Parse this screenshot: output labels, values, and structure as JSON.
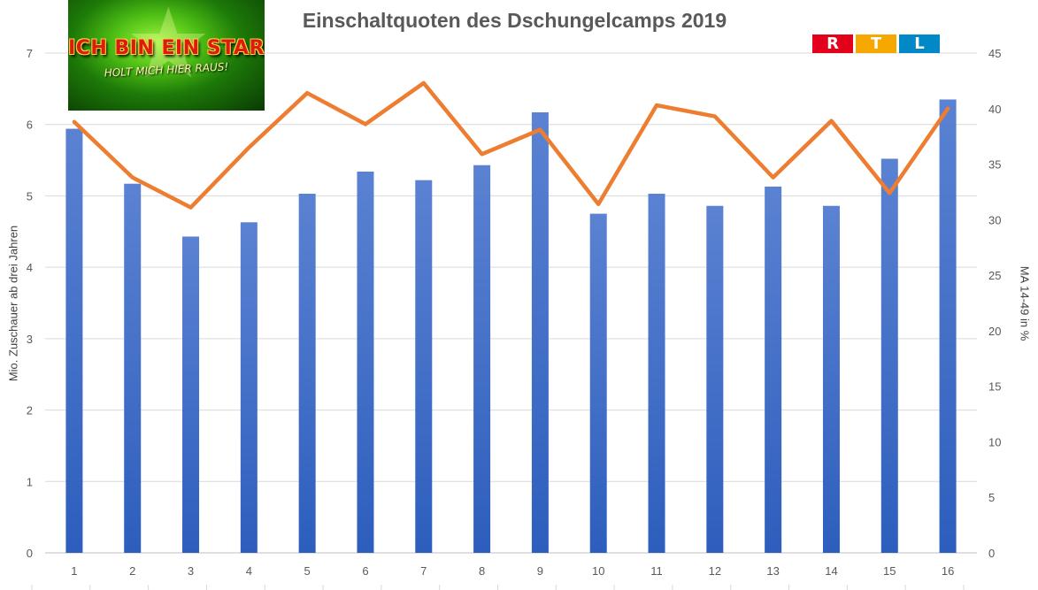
{
  "chart_data": {
    "type": "bar",
    "title": "Einschaltquoten des Dschungelcamps 2019",
    "ylabel": "Mio. Zuschauer ab drei Jahren",
    "ylabel_right": "MA 14-49 in %",
    "categories": [
      "1",
      "2",
      "3",
      "4",
      "5",
      "6",
      "7",
      "8",
      "9",
      "10",
      "11",
      "12",
      "13",
      "14",
      "15",
      "16"
    ],
    "ylim": [
      0,
      7
    ],
    "y_ticks": [
      0,
      1,
      2,
      3,
      4,
      5,
      6,
      7
    ],
    "ylim_right": [
      0,
      45
    ],
    "y_right_ticks": [
      0,
      5,
      10,
      15,
      20,
      25,
      30,
      35,
      40,
      45
    ],
    "grid": true,
    "series": [
      {
        "type": "bar",
        "axis": "left",
        "color": "#3a66c4",
        "values": [
          5.94,
          5.17,
          4.43,
          4.63,
          5.03,
          5.34,
          5.22,
          5.43,
          6.17,
          4.75,
          5.03,
          4.86,
          5.13,
          4.86,
          5.52,
          6.35
        ]
      },
      {
        "type": "line",
        "axis": "right",
        "color": "#ed7d31",
        "values": [
          38.8,
          33.8,
          31.1,
          36.5,
          41.4,
          38.6,
          42.3,
          35.9,
          38.1,
          31.4,
          40.3,
          39.3,
          33.8,
          38.9,
          32.4,
          40.0
        ]
      }
    ]
  },
  "logos": {
    "show_logo_text": "ICH BIN EIN STAR",
    "show_logo_subtext": "HOLT MICH HIER RAUS!",
    "network_logo_letters": [
      "R",
      "T",
      "L"
    ],
    "network_logo_colors": [
      "#e2001a",
      "#f6a800",
      "#0089c6"
    ]
  }
}
